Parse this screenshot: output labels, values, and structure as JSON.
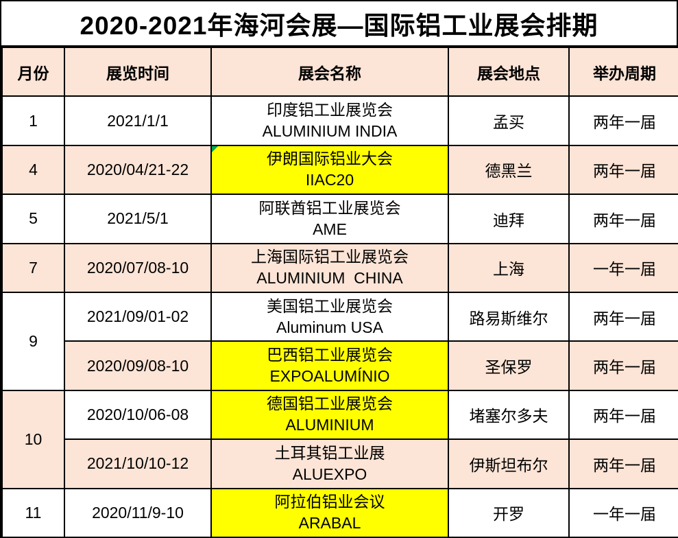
{
  "title": "2020-2021年海河会展—国际铝工业展会排期",
  "colors": {
    "text": "#000000",
    "grid_border": "#000000",
    "header_bg": "#fce4d6",
    "row_alt_bg": "#fce4d6",
    "highlight_bg": "#ffff00",
    "corner_flag_green": "#00a651"
  },
  "table": {
    "headers": {
      "month": "月份",
      "date": "展览时间",
      "name": "展会名称",
      "location": "展会地点",
      "cycle": "举办周期"
    },
    "rows": [
      {
        "month": "1",
        "date": "2021/1/1",
        "name_cn": "印度铝工业展览会",
        "name_en": "ALUMINIUM INDIA",
        "location": "孟买",
        "cycle": "两年一届"
      },
      {
        "month": "4",
        "date": "2020/04/21-22",
        "name_cn": "伊朗国际铝业大会",
        "name_en": "IIAC20",
        "location": "德黑兰",
        "cycle": "两年一届"
      },
      {
        "month": "5",
        "date": "2021/5/1",
        "name_cn": "阿联酋铝工业展览会",
        "name_en": "AME",
        "location": "迪拜",
        "cycle": "两年一届"
      },
      {
        "month": "7",
        "date": "2020/07/08-10",
        "name_cn": "上海国际铝工业展览会",
        "name_en": "ALUMINIUM  CHINA",
        "location": "上海",
        "cycle": "一年一届"
      },
      {
        "month": "9",
        "date": "2021/09/01-02",
        "name_cn": "美国铝工业展览会",
        "name_en": "Aluminum USA",
        "location": "路易斯维尔",
        "cycle": "两年一届"
      },
      {
        "month": "9",
        "date": "2020/09/08-10",
        "name_cn": "巴西铝工业展览会",
        "name_en": "EXPOALUMÍNIO",
        "location": "圣保罗",
        "cycle": "两年一届"
      },
      {
        "month": "10",
        "date": "2020/10/06-08",
        "name_cn": "德国铝工业展览会",
        "name_en": "ALUMINIUM",
        "location": "堵塞尔多夫",
        "cycle": "两年一届"
      },
      {
        "month": "10",
        "date": "2021/10/10-12",
        "name_cn": "土耳其铝工业展",
        "name_en": "ALUEXPO",
        "location": "伊斯坦布尔",
        "cycle": "两年一届"
      },
      {
        "month": "11",
        "date": "2020/11/9-10",
        "name_cn": "阿拉伯铝业会议",
        "name_en": "ARABAL",
        "location": "开罗",
        "cycle": "一年一届"
      }
    ]
  }
}
